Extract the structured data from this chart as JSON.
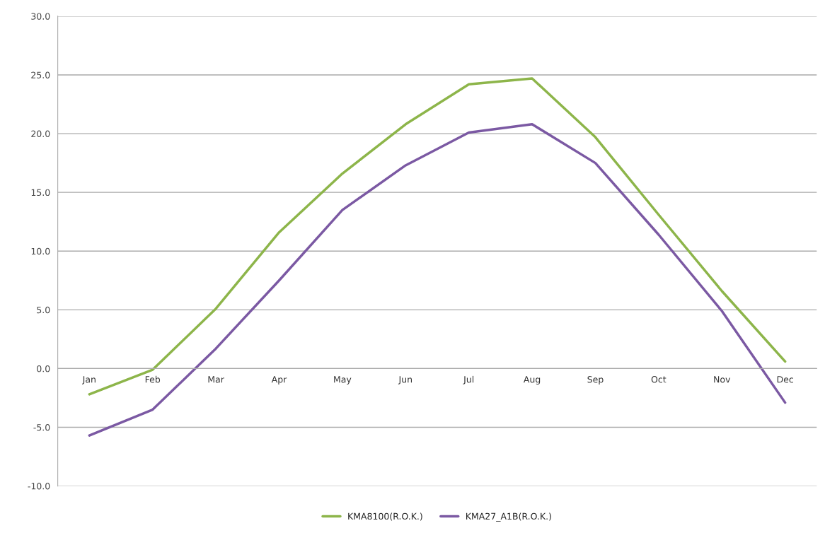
{
  "chart_data": {
    "type": "line",
    "categories": [
      "Jan",
      "Feb",
      "Mar",
      "Apr",
      "May",
      "Jun",
      "Jul",
      "Aug",
      "Sep",
      "Oct",
      "Nov",
      "Dec"
    ],
    "series": [
      {
        "name": "KMA8100(R.O.K.)",
        "color": "#8db54a",
        "values": [
          -2.2,
          -0.1,
          5.1,
          11.6,
          16.6,
          20.8,
          24.2,
          24.7,
          19.7,
          13.1,
          6.6,
          0.6
        ]
      },
      {
        "name": "KMA27_A1B(R.O.K.)",
        "color": "#7b59a3",
        "values": [
          -5.7,
          -3.5,
          1.7,
          7.5,
          13.5,
          17.3,
          20.1,
          20.8,
          17.5,
          11.4,
          4.9,
          -2.9
        ]
      }
    ],
    "ylim": [
      -10,
      30
    ],
    "yticks": [
      {
        "value": -10,
        "label": "-10.0"
      },
      {
        "value": -5,
        "label": "-5.0"
      },
      {
        "value": 0,
        "label": "0.0"
      },
      {
        "value": 5,
        "label": "5.0"
      },
      {
        "value": 10,
        "label": "10.0"
      },
      {
        "value": 15,
        "label": "15.0"
      },
      {
        "value": 20,
        "label": "20.0"
      },
      {
        "value": 25,
        "label": "25.0"
      },
      {
        "value": 30,
        "label": "30.0"
      }
    ],
    "grid": "y",
    "legend": "bottom",
    "marker": "none",
    "line_style": "solid"
  }
}
